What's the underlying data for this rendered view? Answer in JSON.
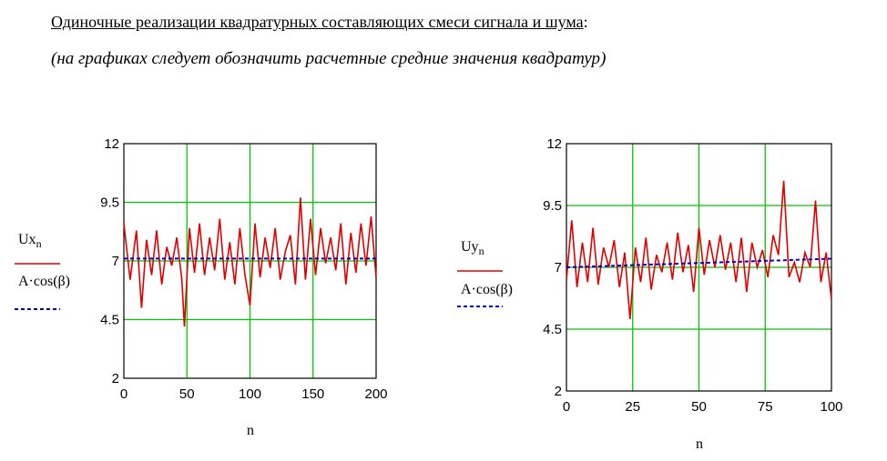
{
  "header": {
    "title_main": "Одиночные реализации квадратурных составляющих смеси сигнала и шума",
    "title_colon": ":",
    "subtitle_paren_open": "(",
    "subtitle": "на графиках следует обозначить расчетные средние значения квадратур",
    "subtitle_paren_close": ")"
  },
  "colors": {
    "signal": "#e00000",
    "mean": "#0000c8",
    "grid": "#00c800"
  },
  "chart_data": [
    {
      "type": "line",
      "xlabel": "n",
      "xlim": [
        0,
        200
      ],
      "ylim": [
        2,
        12
      ],
      "xticks": [
        0,
        50,
        100,
        150,
        200
      ],
      "yticks": [
        2,
        4.5,
        7,
        9.5,
        12
      ],
      "xtick_labels": [
        "0",
        "50",
        "100",
        "150",
        "200"
      ],
      "ytick_labels": [
        "2",
        "4.5",
        "7",
        "9.5",
        "12"
      ],
      "grid": true,
      "legend_position": "left",
      "series": [
        {
          "name": "Ux",
          "name_sub": "n",
          "style": "solid",
          "color": "#e00000",
          "x": [
            0,
            5,
            10,
            14,
            18,
            22,
            26,
            30,
            34,
            38,
            42,
            46,
            48,
            52,
            56,
            60,
            64,
            68,
            72,
            76,
            80,
            84,
            88,
            92,
            96,
            100,
            104,
            108,
            112,
            116,
            120,
            124,
            128,
            132,
            136,
            140,
            144,
            148,
            152,
            156,
            160,
            164,
            168,
            172,
            176,
            180,
            184,
            188,
            192,
            196,
            200
          ],
          "y": [
            8.6,
            6.2,
            8.3,
            5.0,
            7.9,
            6.4,
            8.3,
            6.0,
            7.6,
            6.8,
            8.0,
            6.2,
            4.2,
            8.4,
            6.5,
            8.6,
            6.4,
            8.0,
            6.6,
            8.8,
            6.2,
            7.8,
            6.0,
            8.4,
            6.4,
            5.1,
            8.6,
            6.3,
            8.0,
            6.7,
            8.4,
            6.2,
            7.4,
            8.1,
            6.0,
            9.7,
            6.2,
            8.8,
            6.4,
            8.4,
            6.9,
            8.0,
            6.6,
            8.6,
            6.0,
            8.2,
            6.5,
            8.6,
            6.8,
            8.9,
            6.3
          ]
        },
        {
          "name": "A·cos(β)",
          "style": "dashed",
          "color": "#0000c8",
          "x": [
            0,
            200
          ],
          "y": [
            7.1,
            7.1
          ]
        }
      ]
    },
    {
      "type": "line",
      "xlabel": "n",
      "xlim": [
        0,
        100
      ],
      "ylim": [
        2,
        12
      ],
      "xticks": [
        0,
        25,
        50,
        75,
        100
      ],
      "yticks": [
        2,
        4.5,
        7,
        9.5,
        12
      ],
      "xtick_labels": [
        "0",
        "25",
        "50",
        "75",
        "100"
      ],
      "ytick_labels": [
        "2",
        "4.5",
        "7",
        "9.5",
        "12"
      ],
      "grid": true,
      "legend_position": "left",
      "series": [
        {
          "name": "Uy",
          "name_sub": "n",
          "style": "solid",
          "color": "#e00000",
          "x": [
            0,
            2,
            4,
            6,
            8,
            10,
            12,
            14,
            16,
            18,
            20,
            22,
            24,
            26,
            28,
            30,
            32,
            34,
            36,
            38,
            40,
            42,
            44,
            46,
            48,
            50,
            52,
            54,
            56,
            58,
            60,
            62,
            64,
            66,
            68,
            70,
            72,
            74,
            76,
            78,
            80,
            82,
            84,
            86,
            88,
            90,
            92,
            94,
            96,
            98,
            100
          ],
          "y": [
            6.5,
            8.9,
            6.2,
            8.0,
            6.4,
            8.6,
            6.3,
            7.8,
            7.0,
            8.1,
            6.2,
            7.6,
            4.9,
            7.8,
            6.4,
            8.2,
            6.1,
            7.5,
            6.8,
            8.0,
            6.5,
            8.4,
            6.8,
            7.9,
            6.0,
            8.6,
            6.7,
            8.1,
            7.0,
            8.3,
            6.9,
            8.0,
            6.4,
            8.2,
            6.0,
            8.0,
            7.0,
            7.7,
            6.6,
            8.3,
            7.5,
            10.5,
            6.6,
            7.2,
            6.4,
            7.6,
            7.0,
            9.7,
            6.4,
            7.6,
            5.7
          ]
        },
        {
          "name": "A·cos(β)",
          "style": "dashed",
          "color": "#0000c8",
          "x": [
            0,
            100
          ],
          "y": [
            7.0,
            7.35
          ]
        }
      ]
    }
  ]
}
